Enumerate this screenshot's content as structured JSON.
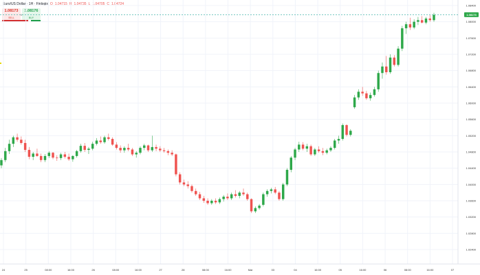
{
  "header": {
    "symbol_title": "Euro/US Dollar · 1H · Finlogix",
    "ohlc": [
      {
        "label": "O",
        "value": "1.04715"
      },
      {
        "label": "H",
        "value": "1.04735"
      },
      {
        "label": "L",
        "value": "1.04705"
      },
      {
        "label": "C",
        "value": "1.04724"
      }
    ]
  },
  "trade_panel": {
    "sell_price": "1.08173",
    "sell_label": "SELL",
    "spread": "0",
    "buy_price": "1.08176",
    "buy_label": "BUY"
  },
  "colors": {
    "up": "#26a69a",
    "up_candle": "#2ea84a",
    "down": "#ef5350",
    "last_price_line": "#26a69a",
    "last_price_badge": "#2ea84a",
    "grid": "#f0f3fa"
  },
  "chart_data": {
    "type": "candlestick",
    "y_axis_labels": [
      "1.08400",
      "1.08000",
      "1.07600",
      "1.07200",
      "1.06800",
      "1.06400",
      "1.06000",
      "1.05600",
      "1.05200",
      "1.04800",
      "1.04400",
      "1.04000",
      "1.03600",
      "1.03200",
      "1.02800",
      "1.02400"
    ],
    "ylim": [
      1.022,
      1.0855
    ],
    "last_price": "1.08173",
    "x_axis_labels": [
      "24",
      "25",
      "08:00",
      "16:00",
      "26",
      "08:00",
      "16:00",
      "27",
      "28",
      "08:00",
      "16:00",
      "Mar",
      "03",
      "04",
      "16:00",
      "05",
      "16:00",
      "06",
      "08:00",
      "16:00",
      "07"
    ],
    "grid": true,
    "ohlc": [
      [
        1.0447,
        1.0465,
        1.044,
        1.046
      ],
      [
        1.046,
        1.049,
        1.0455,
        1.0482
      ],
      [
        1.0482,
        1.051,
        1.0475,
        1.05
      ],
      [
        1.05,
        1.052,
        1.0492,
        1.0516
      ],
      [
        1.0516,
        1.0525,
        1.0505,
        1.051
      ],
      [
        1.051,
        1.0518,
        1.0498,
        1.0502
      ],
      [
        1.0502,
        1.051,
        1.048,
        1.0485
      ],
      [
        1.0485,
        1.0492,
        1.0462,
        1.0468
      ],
      [
        1.0468,
        1.048,
        1.046,
        1.0476
      ],
      [
        1.0476,
        1.0488,
        1.0468,
        1.047
      ],
      [
        1.047,
        1.0476,
        1.0455,
        1.046
      ],
      [
        1.046,
        1.0475,
        1.0455,
        1.047
      ],
      [
        1.047,
        1.0482,
        1.0465,
        1.0478
      ],
      [
        1.0478,
        1.048,
        1.0462,
        1.0466
      ],
      [
        1.0466,
        1.0472,
        1.0458,
        1.0465
      ],
      [
        1.0465,
        1.0478,
        1.046,
        1.0474
      ],
      [
        1.0474,
        1.048,
        1.0464,
        1.0468
      ],
      [
        1.0468,
        1.0476,
        1.0458,
        1.0462
      ],
      [
        1.0462,
        1.0472,
        1.0456,
        1.047
      ],
      [
        1.047,
        1.0485,
        1.0466,
        1.0482
      ],
      [
        1.0482,
        1.05,
        1.0478,
        1.0495
      ],
      [
        1.0495,
        1.0502,
        1.048,
        1.0485
      ],
      [
        1.0485,
        1.0492,
        1.0475,
        1.0488
      ],
      [
        1.0488,
        1.0505,
        1.0484,
        1.05
      ],
      [
        1.05,
        1.0514,
        1.0496,
        1.0508
      ],
      [
        1.0508,
        1.0518,
        1.05,
        1.0504
      ],
      [
        1.0504,
        1.052,
        1.05,
        1.0516
      ],
      [
        1.0516,
        1.0525,
        1.0508,
        1.0512
      ],
      [
        1.0512,
        1.0516,
        1.0495,
        1.0498
      ],
      [
        1.0498,
        1.0504,
        1.0486,
        1.049
      ],
      [
        1.049,
        1.0496,
        1.0478,
        1.0484
      ],
      [
        1.0484,
        1.0494,
        1.0478,
        1.049
      ],
      [
        1.049,
        1.05,
        1.0482,
        1.0486
      ],
      [
        1.0486,
        1.049,
        1.047,
        1.0474
      ],
      [
        1.0474,
        1.0482,
        1.0466,
        1.0478
      ],
      [
        1.0478,
        1.0494,
        1.0474,
        1.049
      ],
      [
        1.049,
        1.05,
        1.0484,
        1.0496
      ],
      [
        1.0496,
        1.0498,
        1.048,
        1.0484
      ],
      [
        1.0484,
        1.052,
        1.048,
        1.0492
      ],
      [
        1.0492,
        1.0498,
        1.0482,
        1.0488
      ],
      [
        1.0488,
        1.0494,
        1.048,
        1.0484
      ],
      [
        1.0484,
        1.049,
        1.0478,
        1.0482
      ],
      [
        1.0482,
        1.0486,
        1.0472,
        1.0478
      ],
      [
        1.0478,
        1.0484,
        1.047,
        1.0474
      ],
      [
        1.0474,
        1.0476,
        1.042,
        1.0425
      ],
      [
        1.0425,
        1.043,
        1.04,
        1.0405
      ],
      [
        1.0405,
        1.0412,
        1.0396,
        1.04
      ],
      [
        1.04,
        1.0408,
        1.039,
        1.0396
      ],
      [
        1.0396,
        1.04,
        1.038,
        1.0384
      ],
      [
        1.0384,
        1.039,
        1.0372,
        1.0376
      ],
      [
        1.0376,
        1.0382,
        1.0362,
        1.0366
      ],
      [
        1.0366,
        1.0372,
        1.0355,
        1.036
      ],
      [
        1.036,
        1.0366,
        1.035,
        1.0354
      ],
      [
        1.0354,
        1.0364,
        1.035,
        1.036
      ],
      [
        1.036,
        1.0366,
        1.0352,
        1.0356
      ],
      [
        1.0356,
        1.0368,
        1.0352,
        1.0364
      ],
      [
        1.0364,
        1.0374,
        1.0358,
        1.037
      ],
      [
        1.037,
        1.0378,
        1.0362,
        1.0366
      ],
      [
        1.0366,
        1.038,
        1.0362,
        1.0376
      ],
      [
        1.0376,
        1.0386,
        1.0368,
        1.0372
      ],
      [
        1.0372,
        1.0384,
        1.0366,
        1.038
      ],
      [
        1.038,
        1.039,
        1.0372,
        1.0376
      ],
      [
        1.0376,
        1.038,
        1.036,
        1.0364
      ],
      [
        1.0364,
        1.0366,
        1.033,
        1.0334
      ],
      [
        1.0334,
        1.0346,
        1.033,
        1.0342
      ],
      [
        1.0342,
        1.0352,
        1.0338,
        1.0348
      ],
      [
        1.035,
        1.038,
        1.0346,
        1.0376
      ],
      [
        1.0376,
        1.0388,
        1.037,
        1.0384
      ],
      [
        1.0384,
        1.0392,
        1.0378,
        1.0388
      ],
      [
        1.0388,
        1.0394,
        1.0376,
        1.038
      ],
      [
        1.038,
        1.0384,
        1.036,
        1.0364
      ],
      [
        1.0364,
        1.0404,
        1.036,
        1.04
      ],
      [
        1.04,
        1.044,
        1.0396,
        1.0436
      ],
      [
        1.0436,
        1.047,
        1.043,
        1.0466
      ],
      [
        1.0466,
        1.049,
        1.046,
        1.0486
      ],
      [
        1.0486,
        1.0505,
        1.048,
        1.0498
      ],
      [
        1.0498,
        1.0504,
        1.0484,
        1.0488
      ],
      [
        1.0488,
        1.05,
        1.048,
        1.0494
      ],
      [
        1.0494,
        1.0498,
        1.047,
        1.0474
      ],
      [
        1.0474,
        1.049,
        1.047,
        1.0486
      ],
      [
        1.0486,
        1.0494,
        1.0478,
        1.0482
      ],
      [
        1.0482,
        1.049,
        1.0472,
        1.0478
      ],
      [
        1.0478,
        1.0488,
        1.0474,
        1.0484
      ],
      [
        1.0484,
        1.0494,
        1.048,
        1.049
      ],
      [
        1.049,
        1.0512,
        1.0486,
        1.0508
      ],
      [
        1.0508,
        1.052,
        1.05,
        1.0512
      ],
      [
        1.0512,
        1.055,
        1.0508,
        1.0546
      ],
      [
        1.0546,
        1.0548,
        1.0518,
        1.0522
      ],
      [
        1.0522,
        1.0536,
        1.0518,
        1.0532
      ],
      [
        1.059,
        1.062,
        1.0586,
        1.0614
      ],
      [
        1.0614,
        1.0634,
        1.0608,
        1.0628
      ],
      [
        1.0628,
        1.064,
        1.0618,
        1.0624
      ],
      [
        1.0624,
        1.063,
        1.0608,
        1.0612
      ],
      [
        1.0612,
        1.0626,
        1.0606,
        1.062
      ],
      [
        1.062,
        1.064,
        1.0616,
        1.0634
      ],
      [
        1.0634,
        1.068,
        1.0628,
        1.0674
      ],
      [
        1.0674,
        1.07,
        1.066,
        1.069
      ],
      [
        1.069,
        1.0716,
        1.067,
        1.0676
      ],
      [
        1.0676,
        1.072,
        1.0672,
        1.0712
      ],
      [
        1.0712,
        1.0718,
        1.069,
        1.0694
      ],
      [
        1.0694,
        1.074,
        1.069,
        1.0734
      ],
      [
        1.0734,
        1.079,
        1.0728,
        1.0784
      ],
      [
        1.0784,
        1.08,
        1.077,
        1.0794
      ],
      [
        1.0794,
        1.081,
        1.078,
        1.0786
      ],
      [
        1.0786,
        1.0806,
        1.0782,
        1.08
      ],
      [
        1.08,
        1.0812,
        1.0792,
        1.0804
      ],
      [
        1.0804,
        1.0814,
        1.0796,
        1.0798
      ],
      [
        1.0798,
        1.0812,
        1.0794,
        1.0808
      ],
      [
        1.0808,
        1.0816,
        1.08,
        1.0804
      ],
      [
        1.0804,
        1.0822,
        1.08,
        1.0817
      ]
    ]
  }
}
